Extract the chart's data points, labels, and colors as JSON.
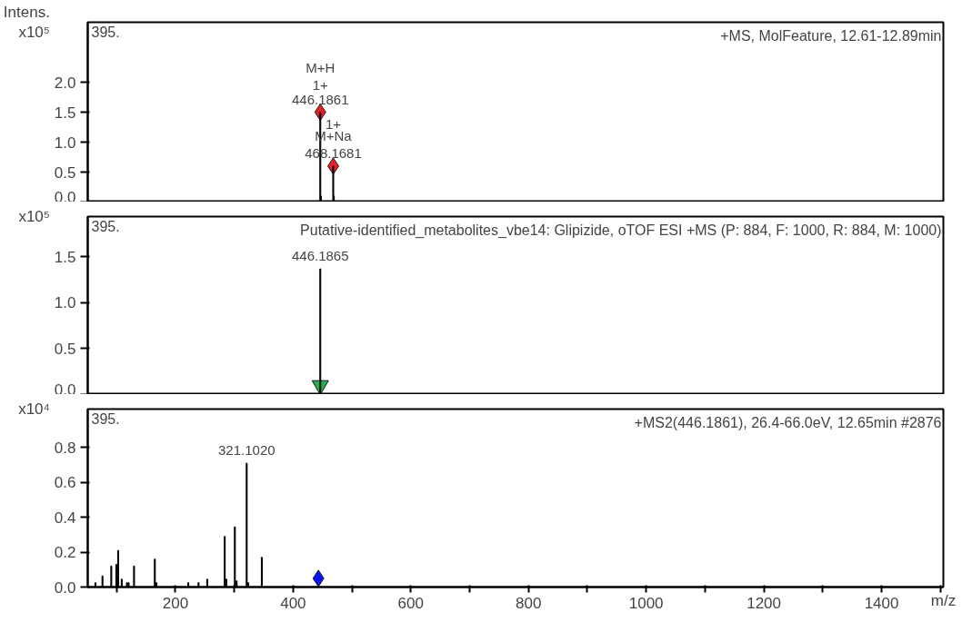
{
  "chart_data": [
    {
      "type": "bar",
      "title": "+MS, MolFeature, 12.61-12.89min",
      "ylabel": "Intens.\nx10⁵",
      "annotations": [
        "395.",
        {
          "text": "446.1861",
          "x": 446.19,
          "y": 1.5
        },
        {
          "text": "1+",
          "x": 446.19,
          "y": 1.5
        },
        {
          "text": "M+H",
          "x": 446.19,
          "y": 1.5
        },
        {
          "text": "468.1681",
          "x": 468.17,
          "y": 0.6
        },
        {
          "text": "M+Na",
          "x": 468.17,
          "y": 0.6
        },
        {
          "text": "1+",
          "x": 468.17,
          "y": 0.6
        }
      ],
      "xlim": [
        51,
        1505
      ],
      "ylim": [
        0,
        3.0
      ],
      "yticks": [
        {
          "value": 0,
          "label": "0.0"
        },
        0.5,
        {
          "value": 1,
          "label": "1.0"
        },
        1.5,
        {
          "value": 2,
          "label": "2.0"
        }
      ],
      "tick_labels": "y",
      "series": [
        {
          "color": "#000000",
          "x": [
            446.19,
            447.19,
            468.17,
            469.17
          ],
          "values": [
            1.5,
            0.1,
            0.6,
            0.1
          ]
        },
        {
          "type": "scatter",
          "marker": "diamond",
          "color": "#e8202a",
          "x": [
            446.19,
            468.17
          ],
          "values": [
            1.5,
            0.6
          ]
        }
      ]
    },
    {
      "type": "bar",
      "title": "Putative-identified_metabolites_vbe14: Glipizide, oTOF ESI +MS (P: 884, F: 1000, R: 884, M: 1000)",
      "ylabel": "x10⁵",
      "annotations": [
        "395.",
        {
          "text": "446.1865",
          "x": 446.19,
          "y": 1.37
        }
      ],
      "xlim": [
        51,
        1505
      ],
      "ylim": [
        0,
        1.94
      ],
      "yticks": [
        {
          "value": 0,
          "label": "0.0"
        },
        0.5,
        {
          "value": 1,
          "label": "1.0"
        },
        1.5
      ],
      "tick_labels": "y",
      "series": [
        {
          "color": "#000000",
          "x": [
            446.19
          ],
          "values": [
            1.37
          ]
        },
        {
          "type": "scatter",
          "marker": "triangle",
          "color": "#22b14c",
          "x": [
            446.19
          ],
          "values": [
            0.1
          ]
        }
      ]
    },
    {
      "type": "bar",
      "title": "+MS2(446.1861), 26.4-66.0eV, 12.65min #2876",
      "ylabel": "x10⁴",
      "xlabel": "m/z",
      "annotations": [
        "395.",
        {
          "text": "321.1020",
          "x": 321.1,
          "y": 0.71
        }
      ],
      "xlim": [
        51,
        1505
      ],
      "ylim": [
        0,
        1.02
      ],
      "yticks": [
        {
          "value": 0,
          "label": "0.0"
        },
        0.2,
        0.4,
        0.6,
        0.8
      ],
      "xticks": [
        {
          "value": 100,
          "label": null
        },
        200,
        {
          "value": 300,
          "label": null
        },
        400,
        {
          "value": 500,
          "label": null
        },
        600,
        {
          "value": 700,
          "label": null
        },
        800,
        {
          "value": 900,
          "label": null
        },
        1000,
        {
          "value": 1100,
          "label": null
        },
        1200,
        {
          "value": 1300,
          "label": null
        },
        1400,
        {
          "value": 1500,
          "label": null
        }
      ],
      "series": [
        {
          "color": "#000000",
          "x": [
            64,
            76,
            91,
            99.6,
            102.7,
            108.8,
            117.6,
            120.5,
            129.7,
            165,
            167.6,
            221.9,
            239.3,
            254,
            283.8,
            286.4,
            301,
            304,
            321.1,
            323.8,
            346.8
          ],
          "values": [
            0.025,
            0.064,
            0.12,
            0.13,
            0.21,
            0.045,
            0.025,
            0.025,
            0.12,
            0.16,
            0.025,
            0.025,
            0.025,
            0.045,
            0.29,
            0.045,
            0.345,
            0.035,
            0.71,
            0.025,
            0.17
          ]
        },
        {
          "type": "scatter",
          "marker": "diamond",
          "color": "#0a14f0",
          "x": [
            443
          ],
          "values": [
            0.05
          ]
        }
      ]
    }
  ]
}
